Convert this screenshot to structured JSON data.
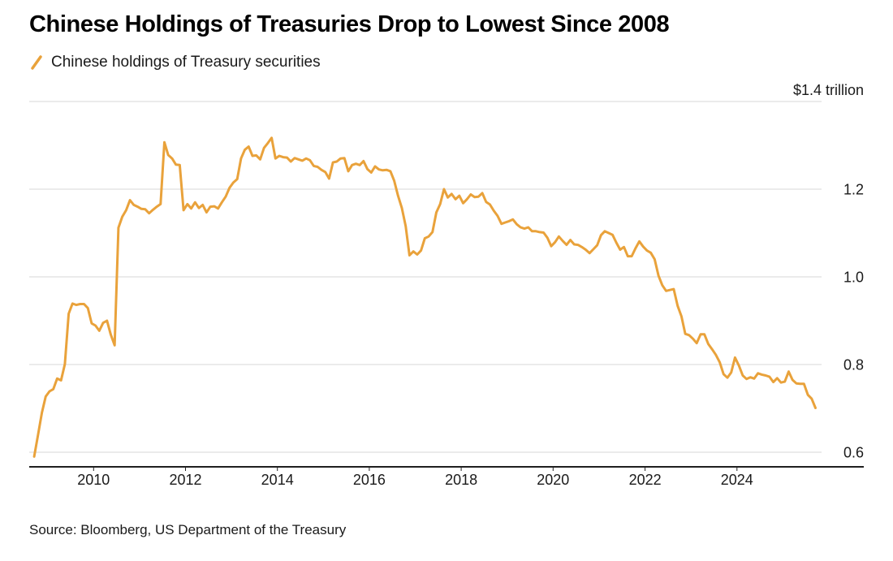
{
  "header": {
    "title": "Chinese Holdings of Treasuries Drop to Lowest Since 2008"
  },
  "legend": {
    "items": [
      {
        "label": "Chinese holdings of Treasury securities",
        "color": "#E9A23B"
      }
    ]
  },
  "footer": {
    "source": "Source: Bloomberg, US Department of the Treasury"
  },
  "colors": {
    "line": "#E9A23B",
    "gridline": "#D7D7D7",
    "axis": "#1f1f1f",
    "text": "#1a1a1a"
  },
  "chart_data": {
    "type": "line",
    "title": "Chinese Holdings of Treasuries Drop to Lowest Since 2008",
    "top_axis_label": "$1.4 trillion",
    "grid": "horizontal",
    "legend_position": "top-left",
    "source": "Source: Bloomberg, US Department of the Treasury",
    "xlim": [
      2008.6,
      2026.0
    ],
    "ylim": [
      0.5667,
      1.4
    ],
    "x_axis": {
      "ticks": [
        {
          "value": 2010,
          "label": "2010"
        },
        {
          "value": 2012,
          "label": "2012"
        },
        {
          "value": 2014,
          "label": "2014"
        },
        {
          "value": 2016,
          "label": "2016"
        },
        {
          "value": 2018,
          "label": "2018"
        },
        {
          "value": 2020,
          "label": "2020"
        },
        {
          "value": 2022,
          "label": "2022"
        },
        {
          "value": 2024,
          "label": "2024"
        }
      ]
    },
    "y_axis": {
      "unit": "USD trillions",
      "ticks": [
        {
          "value": 0.6,
          "label": "0.6"
        },
        {
          "value": 0.8,
          "label": "0.8"
        },
        {
          "value": 1.0,
          "label": "1.0"
        },
        {
          "value": 1.2,
          "label": "1.2"
        },
        {
          "value": 1.4,
          "label": "$1.4 trillion"
        }
      ]
    },
    "series": [
      {
        "name": "Chinese holdings of Treasury securities",
        "color": "#E9A23B",
        "start": "2008-09",
        "frequency": "monthly",
        "values": [
          0.59,
          0.64,
          0.69,
          0.727,
          0.739,
          0.744,
          0.768,
          0.764,
          0.801,
          0.916,
          0.939,
          0.936,
          0.938,
          0.938,
          0.929,
          0.894,
          0.889,
          0.877,
          0.895,
          0.9,
          0.868,
          0.844,
          1.112,
          1.137,
          1.152,
          1.175,
          1.164,
          1.16,
          1.155,
          1.154,
          1.145,
          1.153,
          1.16,
          1.166,
          1.307,
          1.278,
          1.27,
          1.256,
          1.255,
          1.152,
          1.166,
          1.156,
          1.17,
          1.157,
          1.164,
          1.147,
          1.16,
          1.161,
          1.156,
          1.17,
          1.183,
          1.203,
          1.215,
          1.223,
          1.27,
          1.29,
          1.297,
          1.276,
          1.277,
          1.268,
          1.294,
          1.305,
          1.317,
          1.27,
          1.276,
          1.273,
          1.272,
          1.263,
          1.271,
          1.268,
          1.265,
          1.27,
          1.266,
          1.253,
          1.251,
          1.244,
          1.239,
          1.224,
          1.261,
          1.263,
          1.27,
          1.271,
          1.241,
          1.255,
          1.258,
          1.255,
          1.264,
          1.246,
          1.238,
          1.252,
          1.245,
          1.243,
          1.244,
          1.241,
          1.219,
          1.185,
          1.157,
          1.116,
          1.049,
          1.058,
          1.051,
          1.06,
          1.088,
          1.092,
          1.102,
          1.147,
          1.166,
          1.2,
          1.181,
          1.189,
          1.177,
          1.185,
          1.168,
          1.177,
          1.188,
          1.182,
          1.183,
          1.191,
          1.171,
          1.165,
          1.151,
          1.139,
          1.121,
          1.124,
          1.127,
          1.131,
          1.12,
          1.113,
          1.11,
          1.113,
          1.104,
          1.104,
          1.102,
          1.101,
          1.089,
          1.07,
          1.079,
          1.092,
          1.082,
          1.073,
          1.084,
          1.074,
          1.073,
          1.068,
          1.062,
          1.054,
          1.063,
          1.072,
          1.095,
          1.104,
          1.1,
          1.096,
          1.078,
          1.062,
          1.068,
          1.047,
          1.047,
          1.065,
          1.081,
          1.069,
          1.06,
          1.055,
          1.04,
          1.003,
          0.981,
          0.968,
          0.97,
          0.972,
          0.934,
          0.91,
          0.87,
          0.867,
          0.859,
          0.849,
          0.869,
          0.869,
          0.847,
          0.835,
          0.822,
          0.805,
          0.778,
          0.77,
          0.782,
          0.816,
          0.798,
          0.775,
          0.767,
          0.771,
          0.768,
          0.78,
          0.777,
          0.775,
          0.772,
          0.76,
          0.769,
          0.759,
          0.761,
          0.784,
          0.765,
          0.757,
          0.756,
          0.756,
          0.731,
          0.722,
          0.701
        ]
      }
    ]
  }
}
